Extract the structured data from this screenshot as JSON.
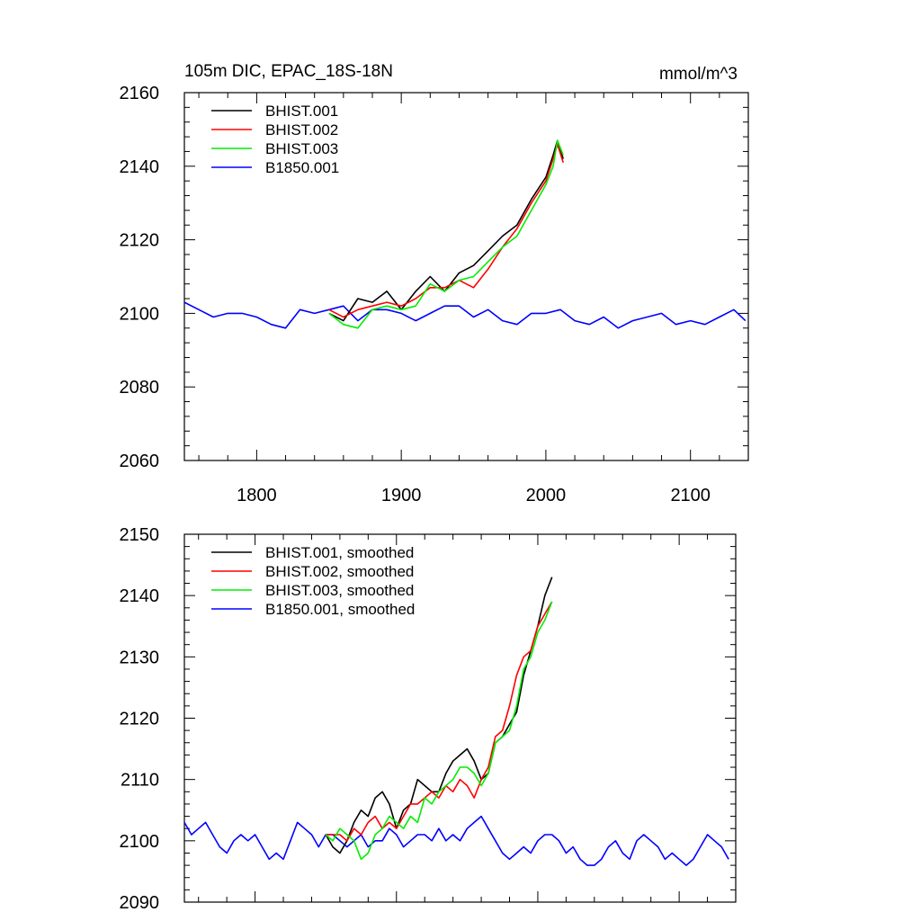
{
  "title_left": "105m DIC, EPAC_18S-18N",
  "title_right": "mmol/m^3",
  "chart_data": [
    {
      "type": "line",
      "title": "105m DIC, EPAC_18S-18N",
      "units": "mmol/m^3",
      "xlim": [
        1750,
        2140
      ],
      "ylim": [
        2060,
        2160
      ],
      "xticks": [
        1800,
        1900,
        2000,
        2100
      ],
      "xtick_labels": [
        "1800",
        "1900",
        "2000",
        "2100"
      ],
      "yticks": [
        2060,
        2080,
        2100,
        2120,
        2140,
        2160
      ],
      "ytick_labels": [
        "2060",
        "2080",
        "2100",
        "2120",
        "2140",
        "2160"
      ],
      "legend_position": "top-left",
      "series": [
        {
          "name": "BHIST.001",
          "color": "#000000",
          "x": [
            1850,
            1860,
            1870,
            1880,
            1890,
            1900,
            1910,
            1920,
            1930,
            1940,
            1950,
            1960,
            1970,
            1980,
            1990,
            2000,
            2005,
            2008,
            2012
          ],
          "y": [
            2100,
            2098,
            2104,
            2103,
            2106,
            2101,
            2106,
            2110,
            2106,
            2111,
            2113,
            2117,
            2121,
            2124,
            2131,
            2137,
            2143,
            2147,
            2142
          ]
        },
        {
          "name": "BHIST.002",
          "color": "#ff0000",
          "x": [
            1850,
            1860,
            1870,
            1880,
            1890,
            1900,
            1910,
            1920,
            1930,
            1940,
            1950,
            1960,
            1970,
            1980,
            1990,
            2000,
            2005,
            2008,
            2012
          ],
          "y": [
            2101,
            2099,
            2101,
            2102,
            2103,
            2102,
            2104,
            2107,
            2107,
            2109,
            2107,
            2112,
            2118,
            2123,
            2130,
            2136,
            2142,
            2146,
            2141
          ]
        },
        {
          "name": "BHIST.003",
          "color": "#00ee00",
          "x": [
            1850,
            1860,
            1870,
            1880,
            1890,
            1900,
            1910,
            1920,
            1930,
            1940,
            1950,
            1960,
            1970,
            1980,
            1990,
            2000,
            2005,
            2008,
            2012
          ],
          "y": [
            2100,
            2097,
            2096,
            2101,
            2102,
            2101,
            2102,
            2108,
            2106,
            2109,
            2110,
            2114,
            2118,
            2121,
            2128,
            2135,
            2140,
            2147,
            2143
          ]
        },
        {
          "name": "B1850.001",
          "color": "#0000ff",
          "x": [
            1750,
            1760,
            1770,
            1780,
            1790,
            1800,
            1810,
            1820,
            1830,
            1840,
            1850,
            1860,
            1870,
            1880,
            1890,
            1900,
            1910,
            1920,
            1930,
            1940,
            1950,
            1960,
            1970,
            1980,
            1990,
            2000,
            2010,
            2020,
            2030,
            2040,
            2050,
            2060,
            2070,
            2080,
            2090,
            2100,
            2110,
            2120,
            2130,
            2138
          ],
          "y": [
            2103,
            2101,
            2099,
            2100,
            2100,
            2099,
            2097,
            2096,
            2101,
            2100,
            2101,
            2102,
            2098,
            2101,
            2101,
            2100,
            2098,
            2100,
            2102,
            2102,
            2099,
            2101,
            2098,
            2097,
            2100,
            2100,
            2101,
            2098,
            2097,
            2099,
            2096,
            2098,
            2099,
            2100,
            2097,
            2098,
            2097,
            2099,
            2101,
            2098
          ]
        }
      ]
    },
    {
      "type": "line",
      "xlim": [
        1750,
        2140
      ],
      "ylim": [
        2090,
        2150
      ],
      "xticks": [
        1800,
        1900,
        2000,
        2100
      ],
      "yticks": [
        2090,
        2100,
        2110,
        2120,
        2130,
        2140,
        2150
      ],
      "ytick_labels": [
        "2090",
        "2100",
        "2110",
        "2120",
        "2130",
        "2140",
        "2150"
      ],
      "legend_position": "top-left",
      "series": [
        {
          "name": "BHIST.001, smoothed",
          "color": "#000000",
          "x": [
            1850,
            1855,
            1860,
            1865,
            1870,
            1875,
            1880,
            1885,
            1890,
            1895,
            1900,
            1905,
            1910,
            1915,
            1920,
            1925,
            1930,
            1935,
            1940,
            1945,
            1950,
            1955,
            1960,
            1965,
            1970,
            1975,
            1980,
            1985,
            1990,
            1995,
            2000,
            2005,
            2010
          ],
          "y": [
            2101,
            2099,
            2098,
            2100,
            2103,
            2105,
            2104,
            2107,
            2108,
            2106,
            2102,
            2105,
            2106,
            2110,
            2109,
            2108,
            2108,
            2111,
            2113,
            2114,
            2115,
            2113,
            2110,
            2111,
            2116,
            2117,
            2119,
            2121,
            2127,
            2131,
            2135,
            2140,
            2143
          ]
        },
        {
          "name": "BHIST.002, smoothed",
          "color": "#ff0000",
          "x": [
            1850,
            1855,
            1860,
            1865,
            1870,
            1875,
            1880,
            1885,
            1890,
            1895,
            1900,
            1905,
            1910,
            1915,
            1920,
            1925,
            1930,
            1935,
            1940,
            1945,
            1950,
            1955,
            1960,
            1965,
            1970,
            1975,
            1980,
            1985,
            1990,
            1995,
            2000,
            2005,
            2010
          ],
          "y": [
            2101,
            2101,
            2101,
            2100,
            2102,
            2101,
            2103,
            2104,
            2102,
            2103,
            2102,
            2104,
            2106,
            2106,
            2107,
            2108,
            2107,
            2109,
            2108,
            2110,
            2109,
            2107,
            2110,
            2112,
            2117,
            2118,
            2122,
            2127,
            2130,
            2131,
            2135,
            2137,
            2139
          ]
        },
        {
          "name": "BHIST.003, smoothed",
          "color": "#00ee00",
          "x": [
            1850,
            1855,
            1860,
            1865,
            1870,
            1875,
            1880,
            1885,
            1890,
            1895,
            1900,
            1905,
            1910,
            1915,
            1920,
            1925,
            1930,
            1935,
            1940,
            1945,
            1950,
            1955,
            1960,
            1965,
            1970,
            1975,
            1980,
            1985,
            1990,
            1995,
            2000,
            2005,
            2010
          ],
          "y": [
            2101,
            2100,
            2102,
            2101,
            2100,
            2097,
            2098,
            2101,
            2102,
            2104,
            2103,
            2102,
            2104,
            2103,
            2107,
            2106,
            2108,
            2109,
            2110,
            2112,
            2112,
            2111,
            2109,
            2111,
            2116,
            2117,
            2118,
            2122,
            2128,
            2130,
            2134,
            2136,
            2139
          ]
        },
        {
          "name": "B1850.001, smoothed",
          "color": "#0000ff",
          "x": [
            1750,
            1755,
            1760,
            1765,
            1770,
            1775,
            1780,
            1785,
            1790,
            1795,
            1800,
            1805,
            1810,
            1815,
            1820,
            1825,
            1830,
            1835,
            1840,
            1845,
            1850,
            1855,
            1860,
            1865,
            1870,
            1875,
            1880,
            1885,
            1890,
            1895,
            1900,
            1905,
            1910,
            1915,
            1920,
            1925,
            1930,
            1935,
            1940,
            1945,
            1950,
            1955,
            1960,
            1965,
            1970,
            1975,
            1980,
            1985,
            1990,
            1995,
            2000,
            2005,
            2010,
            2015,
            2020,
            2025,
            2030,
            2035,
            2040,
            2045,
            2050,
            2055,
            2060,
            2065,
            2070,
            2075,
            2080,
            2085,
            2090,
            2095,
            2100,
            2105,
            2110,
            2115,
            2120,
            2125,
            2130,
            2135
          ],
          "y": [
            2103,
            2101,
            2102,
            2103,
            2101,
            2099,
            2098,
            2100,
            2101,
            2100,
            2101,
            2099,
            2097,
            2098,
            2097,
            2100,
            2103,
            2102,
            2101,
            2099,
            2101,
            2101,
            2100,
            2099,
            2100,
            2101,
            2099,
            2100,
            2100,
            2102,
            2101,
            2099,
            2100,
            2101,
            2101,
            2100,
            2102,
            2100,
            2101,
            2100,
            2102,
            2103,
            2104,
            2102,
            2100,
            2098,
            2097,
            2098,
            2099,
            2098,
            2100,
            2101,
            2101,
            2100,
            2098,
            2099,
            2097,
            2096,
            2096,
            2097,
            2099,
            2100,
            2098,
            2097,
            2100,
            2101,
            2100,
            2099,
            2097,
            2098,
            2097,
            2096,
            2097,
            2099,
            2101,
            2100,
            2099,
            2097
          ]
        }
      ]
    }
  ]
}
